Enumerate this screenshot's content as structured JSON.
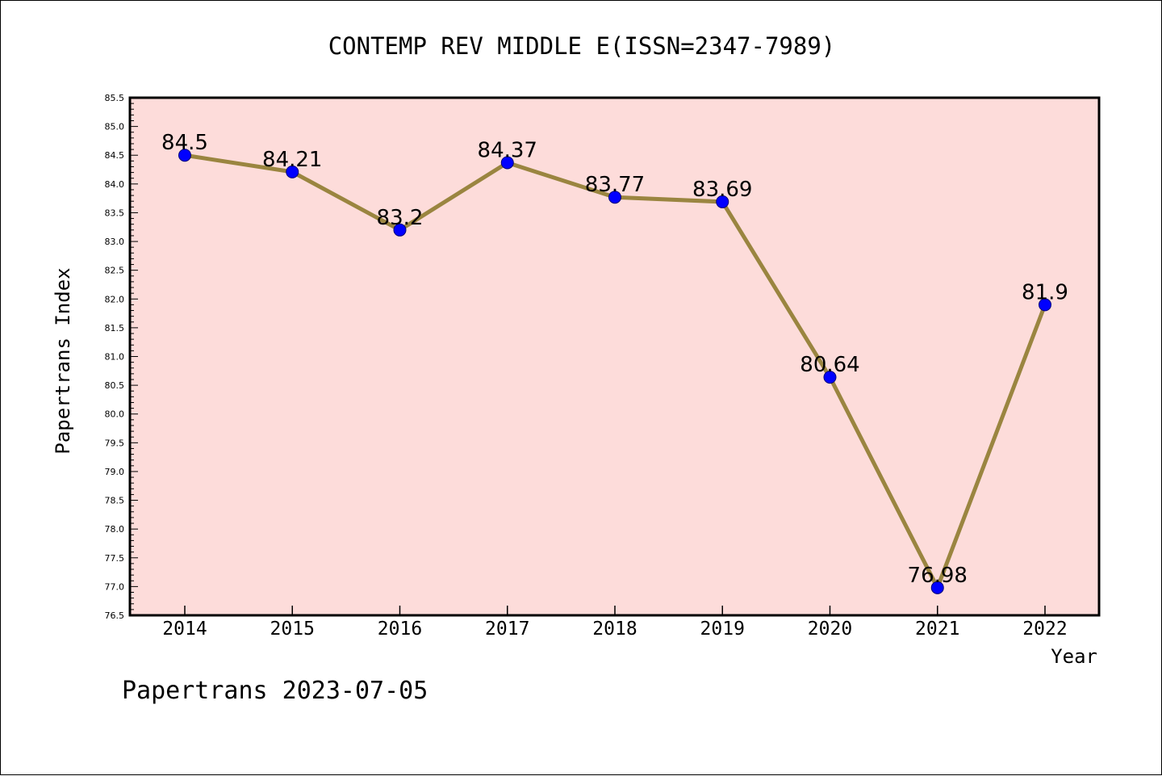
{
  "chart_data": {
    "type": "line",
    "title": "CONTEMP REV MIDDLE E(ISSN=2347-7989)",
    "xlabel": "Year",
    "ylabel": "Papertrans Index",
    "x": [
      "2014",
      "2015",
      "2016",
      "2017",
      "2018",
      "2019",
      "2020",
      "2021",
      "2022"
    ],
    "series": [
      {
        "values": [
          84.5,
          84.21,
          83.2,
          84.37,
          83.77,
          83.69,
          80.64,
          76.98,
          81.9
        ],
        "labels": [
          "84.5",
          "84.21",
          "83.2",
          "84.37",
          "83.77",
          "83.69",
          "80.64",
          "76.98",
          "81.9"
        ]
      }
    ],
    "ylim": [
      76.5,
      85.5
    ],
    "yticks": [
      "76.5",
      "77.0",
      "77.5",
      "78.0",
      "78.5",
      "79.0",
      "79.5",
      "80.0",
      "80.5",
      "81.0",
      "81.5",
      "82.0",
      "82.5",
      "83.0",
      "83.5",
      "84.0",
      "84.5",
      "85.0",
      "85.5"
    ],
    "grid": false,
    "colors": {
      "plot_background": "#fddcda",
      "line": "#9a8540",
      "marker": "#0000ff",
      "axes": "#000000"
    }
  },
  "footer": "Papertrans 2023-07-05"
}
